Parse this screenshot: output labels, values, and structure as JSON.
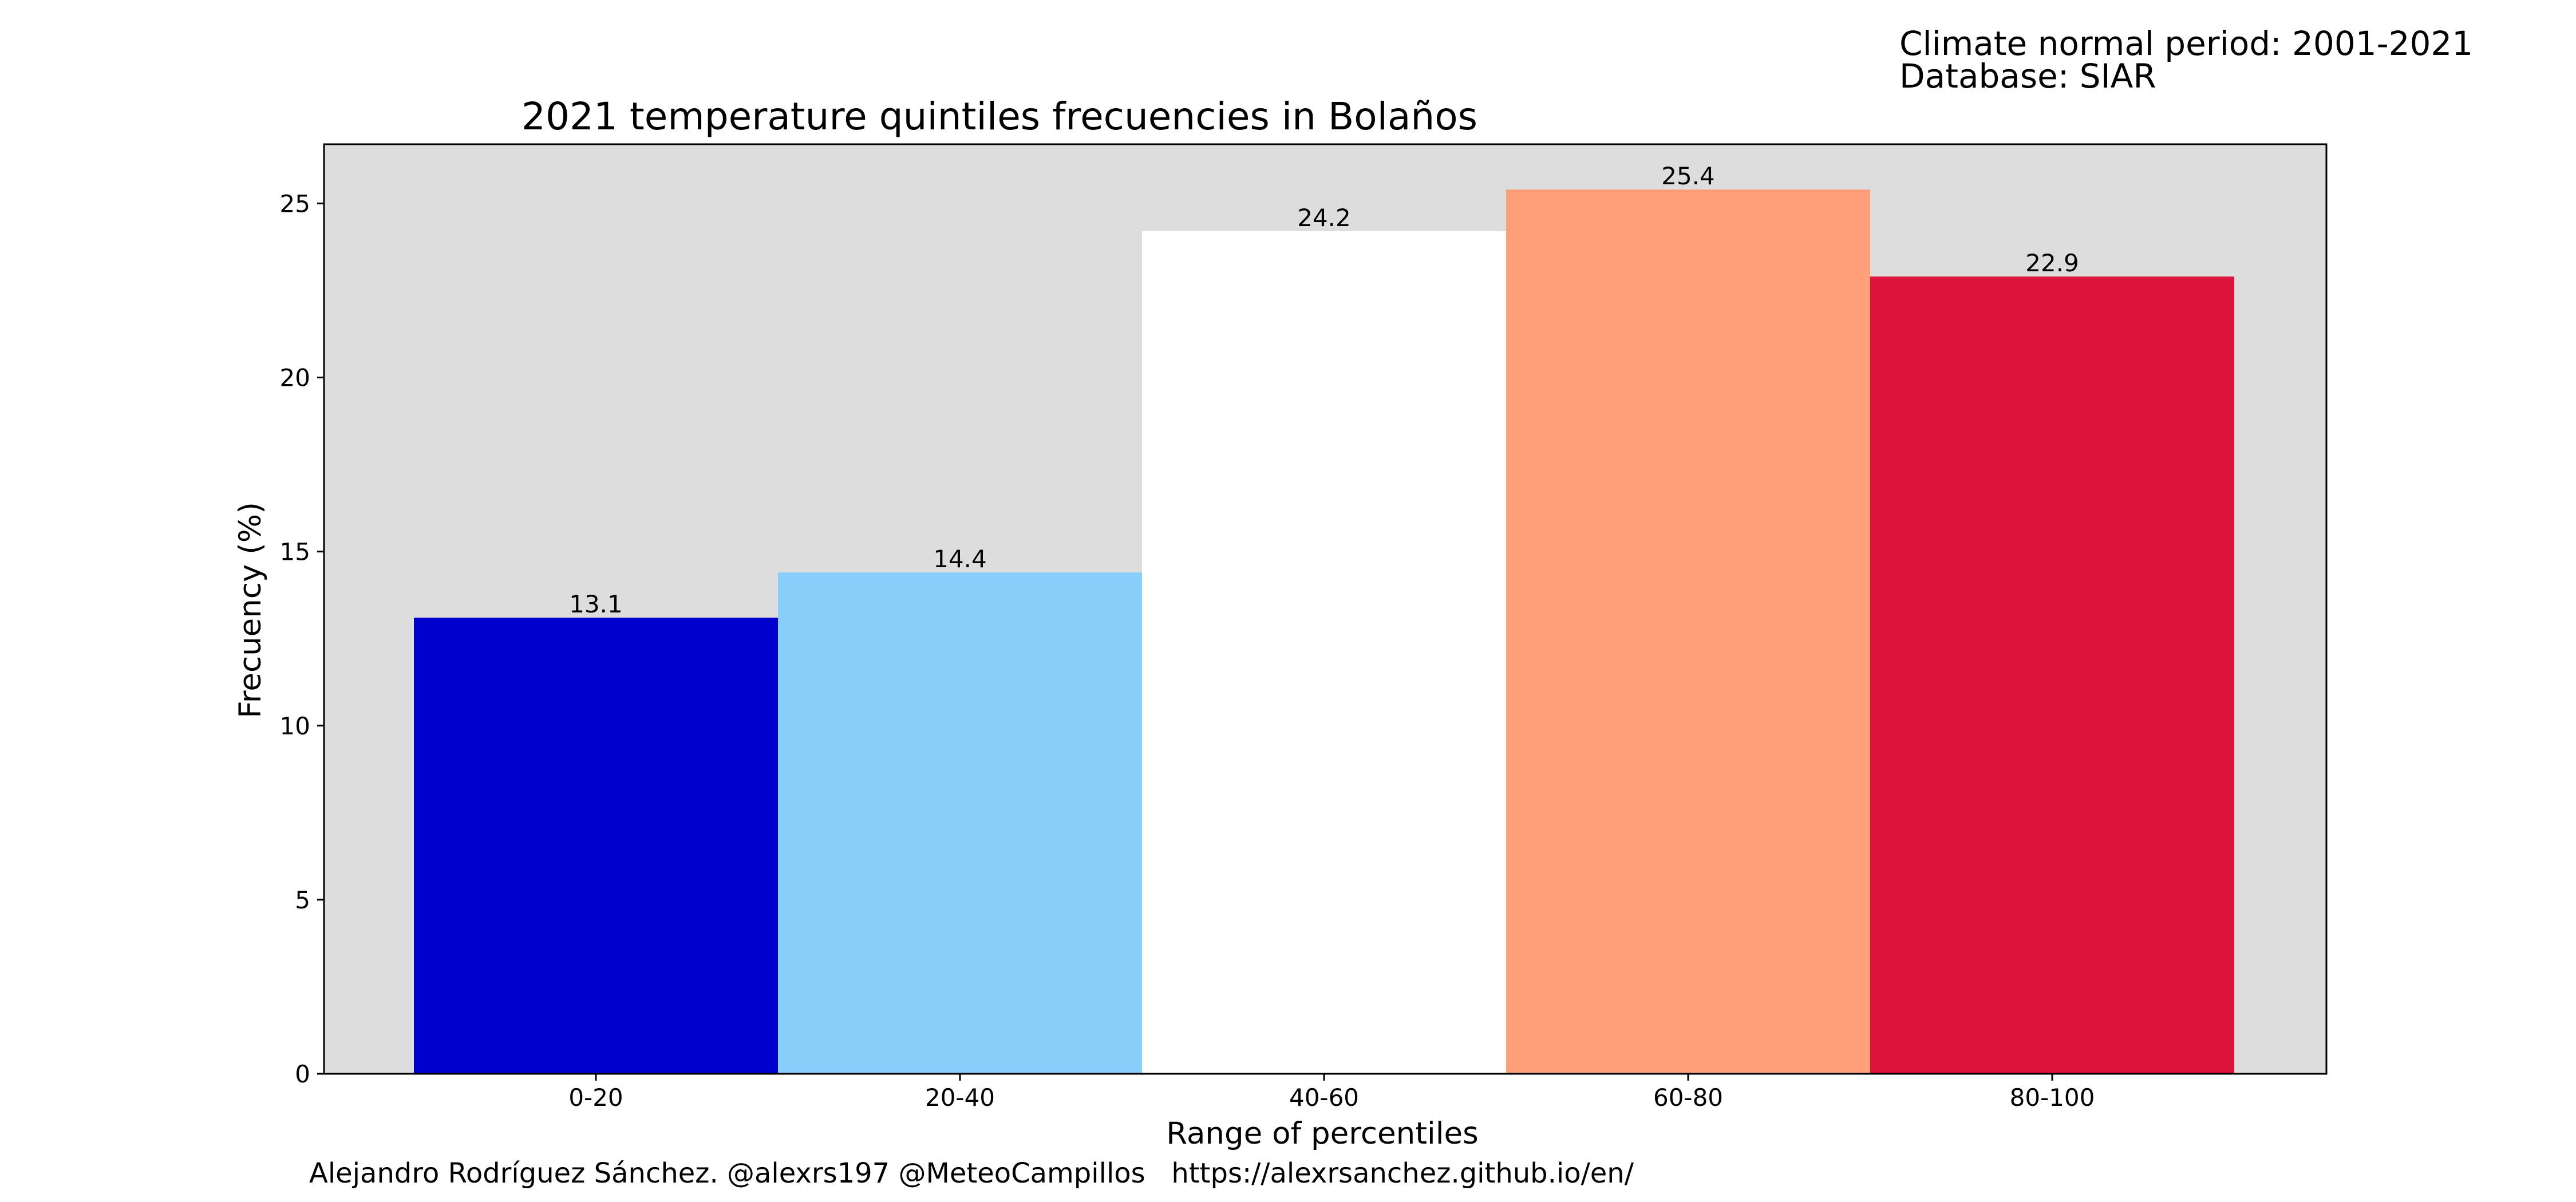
{
  "chart_data": {
    "type": "bar",
    "title": "2021 temperature quintiles frecuencies in Bolaños",
    "xlabel": "Range of percentiles",
    "ylabel": "Frecuency (%)",
    "categories": [
      "0-20",
      "20-40",
      "40-60",
      "60-80",
      "80-100"
    ],
    "values": [
      13.1,
      14.4,
      24.2,
      25.4,
      22.9
    ],
    "data_labels": [
      "13.1",
      "14.4",
      "24.2",
      "25.4",
      "22.9"
    ],
    "colors": [
      "#0000cd",
      "#87cefa",
      "#ffffff",
      "#ffa07a",
      "#dc143c"
    ],
    "ylim": [
      0,
      26.7
    ],
    "yticks": [
      0,
      5,
      10,
      15,
      20,
      25
    ],
    "grid": false,
    "plot_background": "#dddddd",
    "legend": "none"
  },
  "notes": {
    "line1": "Climate normal period: 2001-2021",
    "line2": "Database: SIAR"
  },
  "footer": {
    "credit": "Alejandro Rodríguez Sánchez. @alexrs197 @MeteoCampillos   https://alexrsanchez.github.io/en/"
  }
}
